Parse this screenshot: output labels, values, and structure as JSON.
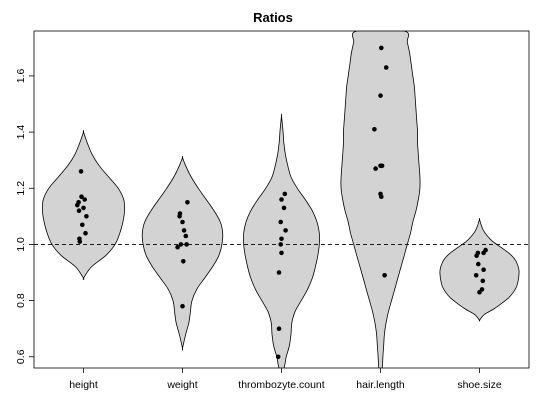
{
  "chart_data": {
    "type": "violin",
    "title": "Ratios",
    "xlabel": "",
    "ylabel": "",
    "ylim": [
      0.56,
      1.76
    ],
    "y_ticks": [
      0.6,
      0.8,
      1.0,
      1.2,
      1.4,
      1.6
    ],
    "y_tick_labels": [
      "0.6",
      "0.8",
      "1.0",
      "1.2",
      "1.4",
      "1.6"
    ],
    "reference_line": 1.0,
    "grid": false,
    "fill_color": "#d3d3d3",
    "categories": [
      "height",
      "weight",
      "thrombozyte.count",
      "hair.length",
      "shoe.size"
    ],
    "series": [
      {
        "category": "height",
        "range": [
          0.88,
          1.4
        ],
        "violin": [
          [
            0.88,
            0.0
          ],
          [
            0.92,
            0.1
          ],
          [
            0.96,
            0.28
          ],
          [
            1.0,
            0.4
          ],
          [
            1.04,
            0.46
          ],
          [
            1.08,
            0.5
          ],
          [
            1.12,
            0.52
          ],
          [
            1.16,
            0.51
          ],
          [
            1.2,
            0.44
          ],
          [
            1.24,
            0.32
          ],
          [
            1.28,
            0.2
          ],
          [
            1.32,
            0.11
          ],
          [
            1.36,
            0.05
          ],
          [
            1.4,
            0.0
          ]
        ],
        "points": [
          [
            -0.06,
            1.26
          ],
          [
            -0.12,
            1.15
          ],
          [
            -0.05,
            1.17
          ],
          [
            0.03,
            1.16
          ],
          [
            -0.15,
            1.14
          ],
          [
            0.0,
            1.13
          ],
          [
            -0.11,
            1.12
          ],
          [
            0.07,
            1.1
          ],
          [
            -0.03,
            1.07
          ],
          [
            0.05,
            1.04
          ],
          [
            -0.1,
            1.02
          ],
          [
            -0.09,
            1.01
          ]
        ]
      },
      {
        "category": "weight",
        "range": [
          0.63,
          1.31
        ],
        "violin": [
          [
            0.63,
            0.0
          ],
          [
            0.68,
            0.04
          ],
          [
            0.72,
            0.08
          ],
          [
            0.76,
            0.1
          ],
          [
            0.8,
            0.12
          ],
          [
            0.84,
            0.18
          ],
          [
            0.88,
            0.28
          ],
          [
            0.92,
            0.38
          ],
          [
            0.96,
            0.46
          ],
          [
            1.0,
            0.5
          ],
          [
            1.04,
            0.51
          ],
          [
            1.08,
            0.48
          ],
          [
            1.12,
            0.4
          ],
          [
            1.16,
            0.3
          ],
          [
            1.2,
            0.2
          ],
          [
            1.24,
            0.11
          ],
          [
            1.28,
            0.04
          ],
          [
            1.31,
            0.0
          ]
        ],
        "points": [
          [
            0.12,
            1.15
          ],
          [
            -0.06,
            1.11
          ],
          [
            -0.07,
            1.1
          ],
          [
            0.0,
            1.08
          ],
          [
            0.04,
            1.05
          ],
          [
            0.08,
            1.03
          ],
          [
            -0.04,
            1.0
          ],
          [
            0.1,
            1.0
          ],
          [
            -0.12,
            0.99
          ],
          [
            0.02,
            0.94
          ],
          [
            0.0,
            0.78
          ]
        ]
      },
      {
        "category": "thrombozyte.count",
        "range": [
          0.56,
          1.46
        ],
        "violin": [
          [
            0.56,
            0.03
          ],
          [
            0.6,
            0.06
          ],
          [
            0.64,
            0.1
          ],
          [
            0.68,
            0.12
          ],
          [
            0.72,
            0.13
          ],
          [
            0.76,
            0.17
          ],
          [
            0.8,
            0.25
          ],
          [
            0.84,
            0.33
          ],
          [
            0.88,
            0.39
          ],
          [
            0.92,
            0.43
          ],
          [
            0.96,
            0.46
          ],
          [
            1.0,
            0.48
          ],
          [
            1.04,
            0.48
          ],
          [
            1.08,
            0.45
          ],
          [
            1.12,
            0.39
          ],
          [
            1.16,
            0.3
          ],
          [
            1.2,
            0.2
          ],
          [
            1.24,
            0.12
          ],
          [
            1.28,
            0.08
          ],
          [
            1.32,
            0.05
          ],
          [
            1.36,
            0.03
          ],
          [
            1.4,
            0.02
          ],
          [
            1.43,
            0.01
          ],
          [
            1.46,
            0.0
          ]
        ],
        "points": [
          [
            0.08,
            1.18
          ],
          [
            0.0,
            1.16
          ],
          [
            0.06,
            1.13
          ],
          [
            -0.02,
            1.08
          ],
          [
            0.1,
            1.05
          ],
          [
            0.0,
            1.02
          ],
          [
            -0.02,
            1.0
          ],
          [
            0.0,
            0.97
          ],
          [
            -0.06,
            0.9
          ],
          [
            -0.06,
            0.7
          ],
          [
            -0.08,
            0.6
          ]
        ]
      },
      {
        "category": "hair.length",
        "range": [
          0.56,
          1.76
        ],
        "violin": [
          [
            0.56,
            0.02
          ],
          [
            0.6,
            0.03
          ],
          [
            0.64,
            0.04
          ],
          [
            0.68,
            0.05
          ],
          [
            0.72,
            0.07
          ],
          [
            0.76,
            0.1
          ],
          [
            0.8,
            0.14
          ],
          [
            0.84,
            0.18
          ],
          [
            0.88,
            0.22
          ],
          [
            0.92,
            0.26
          ],
          [
            0.96,
            0.3
          ],
          [
            1.0,
            0.34
          ],
          [
            1.04,
            0.38
          ],
          [
            1.08,
            0.41
          ],
          [
            1.12,
            0.45
          ],
          [
            1.16,
            0.48
          ],
          [
            1.2,
            0.5
          ],
          [
            1.24,
            0.5
          ],
          [
            1.28,
            0.49
          ],
          [
            1.32,
            0.48
          ],
          [
            1.36,
            0.47
          ],
          [
            1.4,
            0.47
          ],
          [
            1.44,
            0.46
          ],
          [
            1.48,
            0.45
          ],
          [
            1.52,
            0.44
          ],
          [
            1.56,
            0.43
          ],
          [
            1.6,
            0.41
          ],
          [
            1.64,
            0.39
          ],
          [
            1.68,
            0.37
          ],
          [
            1.72,
            0.34
          ],
          [
            1.76,
            0.3
          ]
        ],
        "points": [
          [
            0.02,
            1.7
          ],
          [
            0.14,
            1.63
          ],
          [
            0.0,
            1.53
          ],
          [
            -0.15,
            1.41
          ],
          [
            0.04,
            1.28
          ],
          [
            0.0,
            1.28
          ],
          [
            -0.12,
            1.27
          ],
          [
            0.0,
            1.18
          ],
          [
            0.02,
            1.17
          ],
          [
            0.1,
            0.89
          ]
        ]
      },
      {
        "category": "shoe.size",
        "range": [
          0.73,
          1.09
        ],
        "violin": [
          [
            0.73,
            0.0
          ],
          [
            0.75,
            0.06
          ],
          [
            0.77,
            0.18
          ],
          [
            0.79,
            0.28
          ],
          [
            0.81,
            0.37
          ],
          [
            0.83,
            0.43
          ],
          [
            0.85,
            0.47
          ],
          [
            0.87,
            0.49
          ],
          [
            0.89,
            0.5
          ],
          [
            0.91,
            0.5
          ],
          [
            0.93,
            0.48
          ],
          [
            0.95,
            0.44
          ],
          [
            0.97,
            0.37
          ],
          [
            0.99,
            0.27
          ],
          [
            1.01,
            0.17
          ],
          [
            1.03,
            0.1
          ],
          [
            1.05,
            0.05
          ],
          [
            1.07,
            0.02
          ],
          [
            1.09,
            0.0
          ]
        ],
        "points": [
          [
            0.15,
            0.98
          ],
          [
            0.1,
            0.97
          ],
          [
            -0.04,
            0.97
          ],
          [
            -0.07,
            0.96
          ],
          [
            -0.03,
            0.93
          ],
          [
            0.1,
            0.91
          ],
          [
            -0.08,
            0.89
          ],
          [
            0.08,
            0.87
          ],
          [
            0.06,
            0.84
          ],
          [
            0.0,
            0.83
          ]
        ]
      }
    ]
  }
}
